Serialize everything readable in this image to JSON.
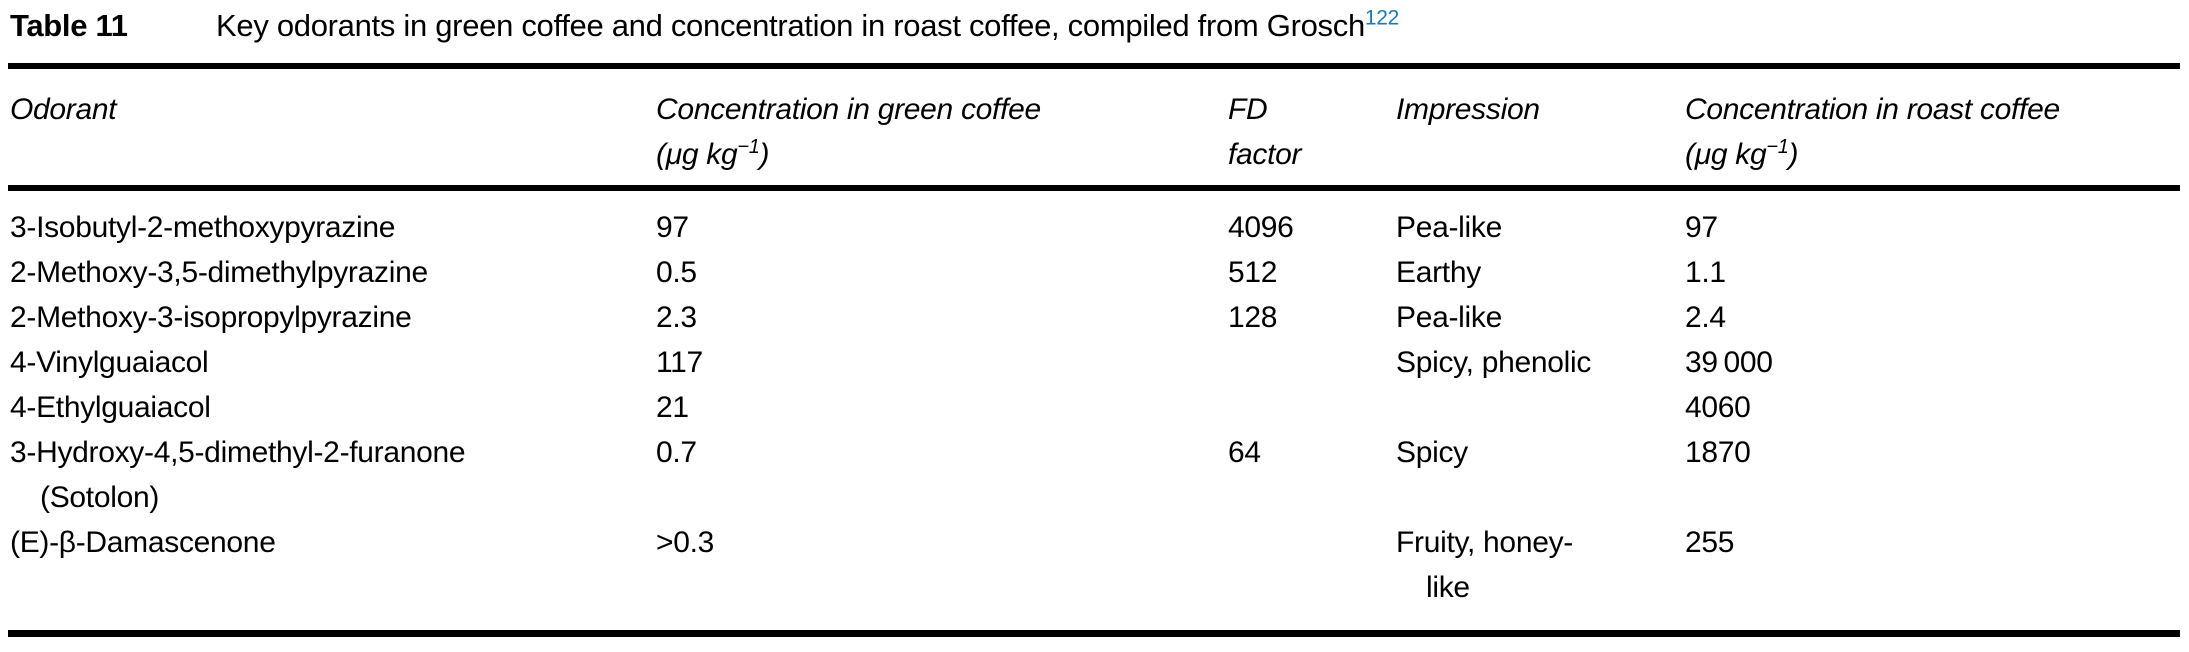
{
  "caption": {
    "label": "Table 11",
    "text": "Key odorants in green coffee and concentration in roast coffee, compiled from Grosch",
    "citation": "122",
    "citation_color": "#1b79b8"
  },
  "table": {
    "columns": [
      {
        "line1": "Odorant"
      },
      {
        "line1": "Concentration in green coffee",
        "unit_prefix": "(μg kg",
        "unit_sup": "−1",
        "unit_suffix": ")"
      },
      {
        "line1": "FD",
        "line2": "factor"
      },
      {
        "line1": "Impression"
      },
      {
        "line1": "Concentration in roast coffee",
        "unit_prefix": "(μg kg",
        "unit_sup": "−1",
        "unit_suffix": ")"
      }
    ],
    "rows": [
      {
        "odorant": "3-Isobutyl-2-methoxypyrazine",
        "green_concentration": "97",
        "fd_factor": "4096",
        "impression": "Pea-like",
        "roast_concentration": "97"
      },
      {
        "odorant": "2-Methoxy-3,5-dimethylpyrazine",
        "green_concentration": "0.5",
        "fd_factor": "512",
        "impression": "Earthy",
        "roast_concentration": "1.1"
      },
      {
        "odorant": "2-Methoxy-3-isopropylpyrazine",
        "green_concentration": "2.3",
        "fd_factor": "128",
        "impression": "Pea-like",
        "roast_concentration": "2.4"
      },
      {
        "odorant": "4-Vinylguaiacol",
        "green_concentration": "117",
        "fd_factor": "",
        "impression": "Spicy, phenolic",
        "roast_concentration": "39 000"
      },
      {
        "odorant": "4-Ethylguaiacol",
        "green_concentration": "21",
        "fd_factor": "",
        "impression": "",
        "roast_concentration": "4060"
      },
      {
        "odorant": "3-Hydroxy-4,5-dimethyl-2-furanone",
        "odorant_line2": "(Sotolon)",
        "green_concentration": "0.7",
        "fd_factor": "64",
        "impression": "Spicy",
        "roast_concentration": "1870"
      },
      {
        "odorant": "(E)-β-Damascenone",
        "green_concentration": ">0.3",
        "fd_factor": "",
        "impression": "Fruity, honey-",
        "impression_line2": "like",
        "roast_concentration": "255"
      }
    ]
  }
}
